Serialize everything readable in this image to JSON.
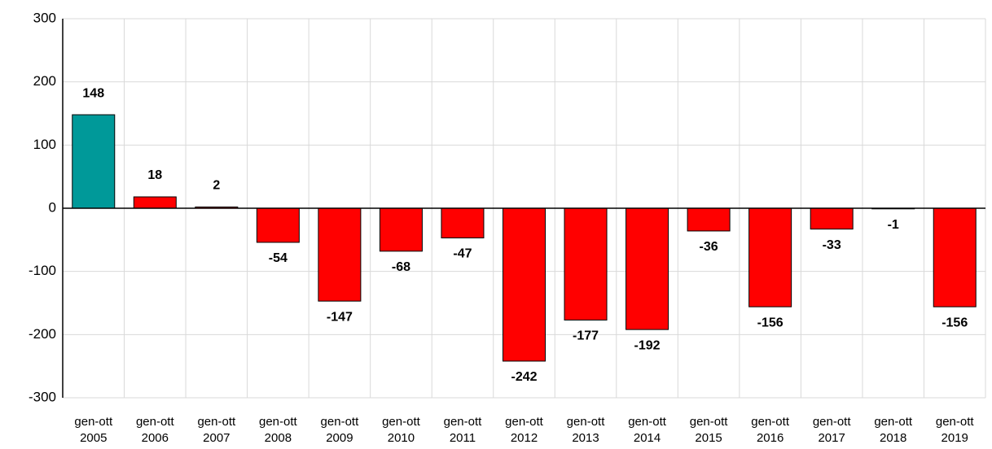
{
  "chart_data": {
    "type": "bar",
    "categories": [
      "gen-ott 2005",
      "gen-ott 2006",
      "gen-ott 2007",
      "gen-ott 2008",
      "gen-ott 2009",
      "gen-ott 2010",
      "gen-ott 2011",
      "gen-ott 2012",
      "gen-ott 2013",
      "gen-ott 2014",
      "gen-ott 2015",
      "gen-ott 2016",
      "gen-ott 2017",
      "gen-ott 2018",
      "gen-ott 2019"
    ],
    "values": [
      148,
      18,
      2,
      -54,
      -147,
      -68,
      -47,
      -242,
      -177,
      -192,
      -36,
      -156,
      -33,
      -1,
      -156
    ],
    "colors": [
      "#009999",
      "#ff0000",
      "#ff0000",
      "#ff0000",
      "#ff0000",
      "#ff0000",
      "#ff0000",
      "#ff0000",
      "#ff0000",
      "#ff0000",
      "#ff0000",
      "#ff0000",
      "#ff0000",
      "#ff0000",
      "#ff0000"
    ],
    "ylim": [
      -300,
      300
    ],
    "yticks": [
      -300,
      -200,
      -100,
      0,
      100,
      200,
      300
    ],
    "grid": true
  }
}
